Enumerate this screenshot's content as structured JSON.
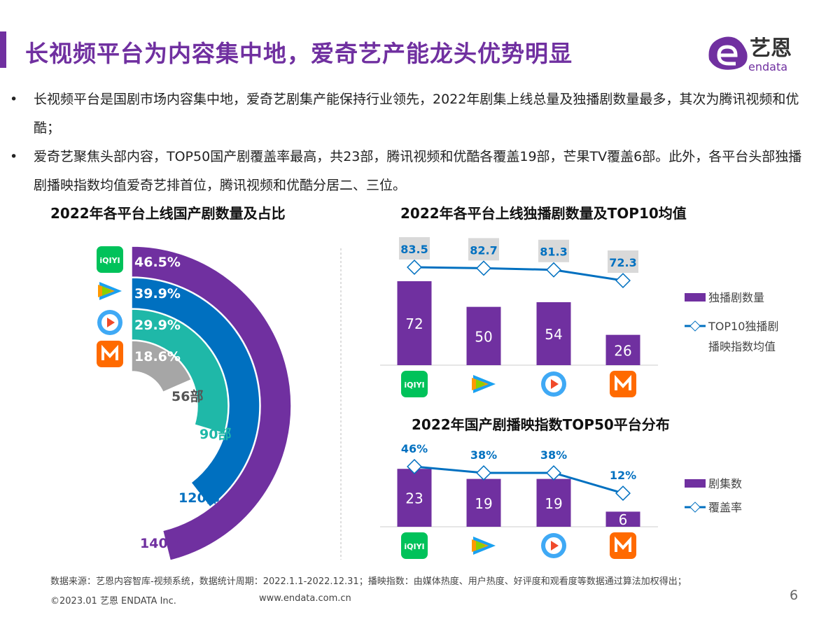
{
  "title": "长视频平台为内容集中地，爱奇艺产能龙头优势明显",
  "logo": {
    "text_cn": "艺恩",
    "text_en": "endata",
    "color": "#7030a0"
  },
  "bullets": [
    "长视频平台是国剧市场内容集中地，爱奇艺剧集产能保持行业领先，2022年剧集上线总量及独播剧数量最多，其次为腾讯视频和优酷；",
    "爱奇艺聚焦头部内容，TOP50国产剧覆盖率最高，共23部，腾讯视频和优酷各覆盖19部，芒果TV覆盖6部。此外，各平台头部独播剧播映指数均值爱奇艺排首位，腾讯视频和优酷分居二、三位。"
  ],
  "platforms": [
    {
      "icon": "iqiyi-logo-icon",
      "logo_text": "iQIYI",
      "color": "#00c25a"
    },
    {
      "icon": "tencent-video-logo-icon",
      "color": "#1aa1f0"
    },
    {
      "icon": "youku-logo-icon",
      "color": "#3fa9f5"
    },
    {
      "icon": "mango-tv-logo-icon",
      "color": "#ff6a00"
    }
  ],
  "chart_data": [
    {
      "type": "radial-bar",
      "title": "2022年各平台上线国产剧数量及占比",
      "categories": [
        "iqiyi",
        "tencent-video",
        "youku",
        "mango-tv"
      ],
      "values": [
        140,
        120,
        90,
        56
      ],
      "value_labels": [
        "140部",
        "120部",
        "90部",
        "56部"
      ],
      "share_labels": [
        "46.5%",
        "39.9%",
        "29.9%",
        "18.6%"
      ],
      "colors": [
        "#7030a0",
        "#0070c0",
        "#1fb8a8",
        "#a6a6a6"
      ]
    },
    {
      "type": "bar+line",
      "title": "2022年各平台上线独播剧数量及TOP10均值",
      "categories": [
        "iqiyi",
        "tencent-video",
        "youku",
        "mango-tv"
      ],
      "series": [
        {
          "name": "独播剧数量",
          "type": "bar",
          "values": [
            72,
            50,
            54,
            26
          ],
          "color": "#7030a0"
        },
        {
          "name": "TOP10独播剧播映指数均值",
          "name_lines": [
            "TOP10独播剧",
            "播映指数均值"
          ],
          "type": "line",
          "values": [
            83.5,
            82.7,
            81.3,
            72.3
          ],
          "labels": [
            "83.5",
            "82.7",
            "81.3",
            "72.3"
          ],
          "color": "#0070c0"
        }
      ],
      "legend": "right"
    },
    {
      "type": "bar+line",
      "title": "2022年国产剧播映指数TOP50平台分布",
      "categories": [
        "iqiyi",
        "tencent-video",
        "youku",
        "mango-tv"
      ],
      "series": [
        {
          "name": "剧集数",
          "type": "bar",
          "values": [
            23,
            19,
            19,
            6
          ],
          "color": "#7030a0"
        },
        {
          "name": "覆盖率",
          "type": "line",
          "values": [
            46,
            38,
            38,
            12
          ],
          "labels": [
            "46%",
            "38%",
            "38%",
            "12%"
          ],
          "color": "#0070c0"
        }
      ],
      "legend": "right"
    }
  ],
  "footer": {
    "source": "数据来源：艺恩内容智库-视频系统，数据统计周期：2022.1.1-2022.12.31；播映指数：由媒体热度、用户热度、好评度和观看度等数据通过算法加权得出；",
    "copyright": "©2023.01 艺恩 ENDATA Inc.",
    "website": "www.endata.com.cn",
    "page": "6"
  }
}
